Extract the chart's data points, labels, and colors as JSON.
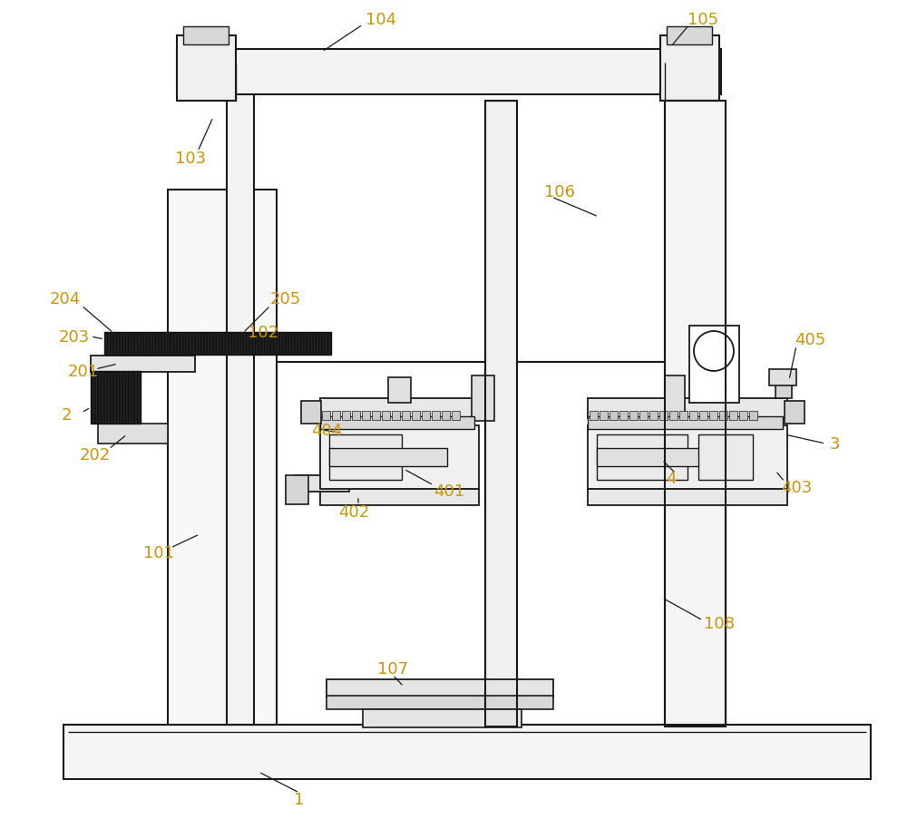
{
  "bg_color": "#ffffff",
  "line_color": "#1a1a1a",
  "label_color": "#c8960a",
  "lw": 1.3,
  "fig_width": 10.0,
  "fig_height": 9.04
}
